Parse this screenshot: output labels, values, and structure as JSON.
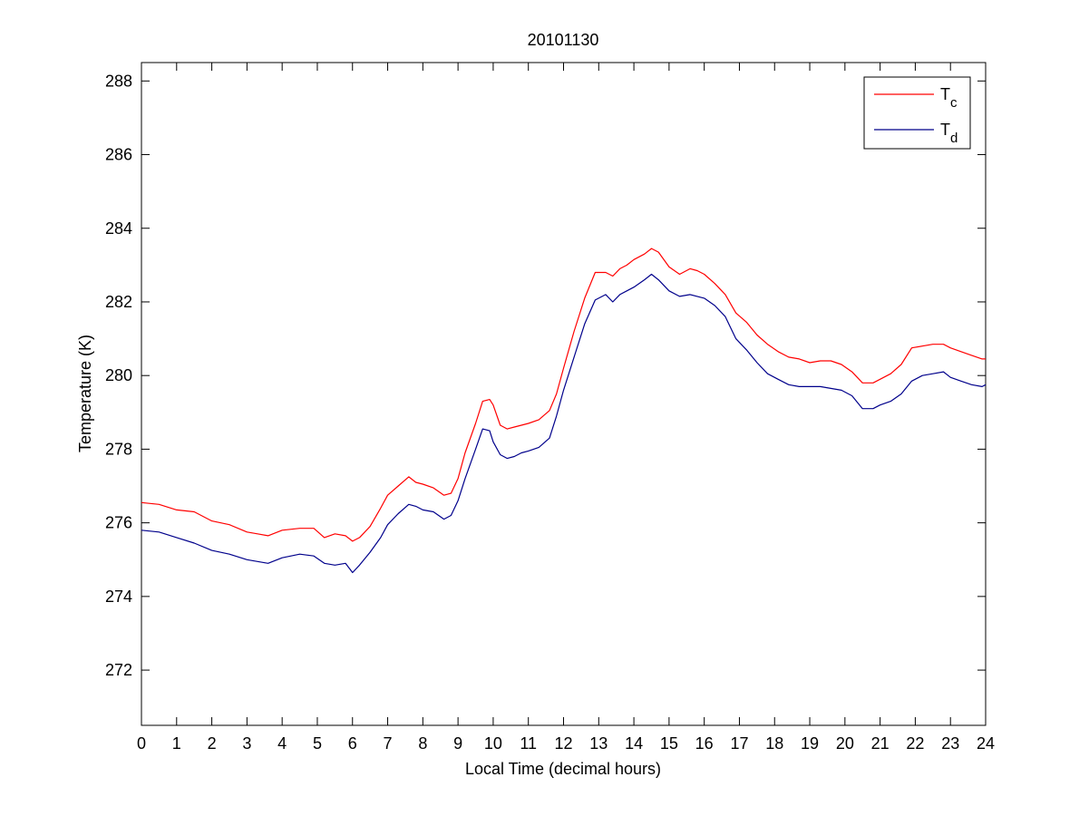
{
  "chart_data": {
    "type": "line",
    "title": "20101130",
    "xlabel": "Local Time (decimal hours)",
    "ylabel": "Temperature (K)",
    "xlim": [
      0,
      24
    ],
    "ylim": [
      270.5,
      288.5
    ],
    "xticks": [
      0,
      1,
      2,
      3,
      4,
      5,
      6,
      7,
      8,
      9,
      10,
      11,
      12,
      13,
      14,
      15,
      16,
      17,
      18,
      19,
      20,
      21,
      22,
      23,
      24
    ],
    "yticks": [
      272,
      274,
      276,
      278,
      280,
      282,
      284,
      286,
      288
    ],
    "grid": false,
    "legend_position": "top-right",
    "series": [
      {
        "name": "T",
        "subscript": "c",
        "color": "#ff0000",
        "x": [
          0,
          0.5,
          1,
          1.5,
          2,
          2.5,
          3,
          3.3,
          3.6,
          4,
          4.5,
          4.9,
          5.2,
          5.5,
          5.8,
          6.0,
          6.2,
          6.5,
          6.8,
          7.0,
          7.3,
          7.6,
          7.8,
          8.0,
          8.3,
          8.6,
          8.8,
          9.0,
          9.2,
          9.5,
          9.7,
          9.9,
          10.0,
          10.2,
          10.4,
          10.6,
          10.8,
          11.0,
          11.3,
          11.6,
          11.8,
          12.0,
          12.3,
          12.6,
          12.9,
          13.2,
          13.4,
          13.6,
          13.8,
          14.0,
          14.3,
          14.5,
          14.7,
          15.0,
          15.3,
          15.6,
          15.8,
          16.0,
          16.3,
          16.6,
          16.9,
          17.2,
          17.5,
          17.8,
          18.1,
          18.4,
          18.7,
          19.0,
          19.3,
          19.6,
          19.9,
          20.2,
          20.5,
          20.8,
          21.0,
          21.3,
          21.6,
          21.9,
          22.2,
          22.5,
          22.8,
          23.0,
          23.3,
          23.6,
          23.9,
          24.0
        ],
        "values": [
          276.55,
          276.5,
          276.35,
          276.3,
          276.05,
          275.95,
          275.75,
          275.7,
          275.65,
          275.8,
          275.85,
          275.85,
          275.6,
          275.7,
          275.65,
          275.5,
          275.6,
          275.9,
          276.4,
          276.75,
          277.0,
          277.25,
          277.1,
          277.05,
          276.95,
          276.75,
          276.8,
          277.2,
          277.9,
          278.7,
          279.3,
          279.35,
          279.2,
          278.65,
          278.55,
          278.6,
          278.65,
          278.7,
          278.8,
          279.05,
          279.5,
          280.2,
          281.2,
          282.1,
          282.8,
          282.8,
          282.7,
          282.9,
          283.0,
          283.15,
          283.3,
          283.45,
          283.35,
          282.95,
          282.75,
          282.9,
          282.85,
          282.75,
          282.5,
          282.2,
          281.7,
          281.45,
          281.1,
          280.85,
          280.65,
          280.5,
          280.45,
          280.35,
          280.4,
          280.4,
          280.3,
          280.1,
          279.8,
          279.8,
          279.9,
          280.05,
          280.3,
          280.75,
          280.8,
          280.85,
          280.85,
          280.75,
          280.65,
          280.55,
          280.45,
          280.45
        ]
      },
      {
        "name": "T",
        "subscript": "d",
        "color": "#00008b",
        "x": [
          0,
          0.5,
          1,
          1.5,
          2,
          2.5,
          3,
          3.3,
          3.6,
          4,
          4.5,
          4.9,
          5.2,
          5.5,
          5.8,
          6.0,
          6.2,
          6.5,
          6.8,
          7.0,
          7.3,
          7.6,
          7.8,
          8.0,
          8.3,
          8.6,
          8.8,
          9.0,
          9.2,
          9.5,
          9.7,
          9.9,
          10.0,
          10.2,
          10.4,
          10.6,
          10.8,
          11.0,
          11.3,
          11.6,
          11.8,
          12.0,
          12.3,
          12.6,
          12.9,
          13.2,
          13.4,
          13.6,
          13.8,
          14.0,
          14.3,
          14.5,
          14.7,
          15.0,
          15.3,
          15.6,
          15.8,
          16.0,
          16.3,
          16.6,
          16.9,
          17.2,
          17.5,
          17.8,
          18.1,
          18.4,
          18.7,
          19.0,
          19.3,
          19.6,
          19.9,
          20.2,
          20.5,
          20.8,
          21.0,
          21.3,
          21.6,
          21.9,
          22.2,
          22.5,
          22.8,
          23.0,
          23.3,
          23.6,
          23.9,
          24.0
        ],
        "values": [
          275.8,
          275.75,
          275.6,
          275.45,
          275.25,
          275.15,
          275.0,
          274.95,
          274.9,
          275.05,
          275.15,
          275.1,
          274.9,
          274.85,
          274.9,
          274.65,
          274.85,
          275.2,
          275.6,
          275.95,
          276.25,
          276.5,
          276.45,
          276.35,
          276.3,
          276.1,
          276.2,
          276.6,
          277.2,
          278.0,
          278.55,
          278.5,
          278.2,
          277.85,
          277.75,
          277.8,
          277.9,
          277.95,
          278.05,
          278.3,
          278.9,
          279.6,
          280.5,
          281.4,
          282.05,
          282.2,
          282.0,
          282.2,
          282.3,
          282.4,
          282.6,
          282.75,
          282.6,
          282.3,
          282.15,
          282.2,
          282.15,
          282.1,
          281.9,
          281.6,
          281.0,
          280.7,
          280.35,
          280.05,
          279.9,
          279.75,
          279.7,
          279.7,
          279.7,
          279.65,
          279.6,
          279.45,
          279.1,
          279.1,
          279.2,
          279.3,
          279.5,
          279.85,
          280.0,
          280.05,
          280.1,
          279.95,
          279.85,
          279.75,
          279.7,
          279.75
        ]
      }
    ]
  }
}
